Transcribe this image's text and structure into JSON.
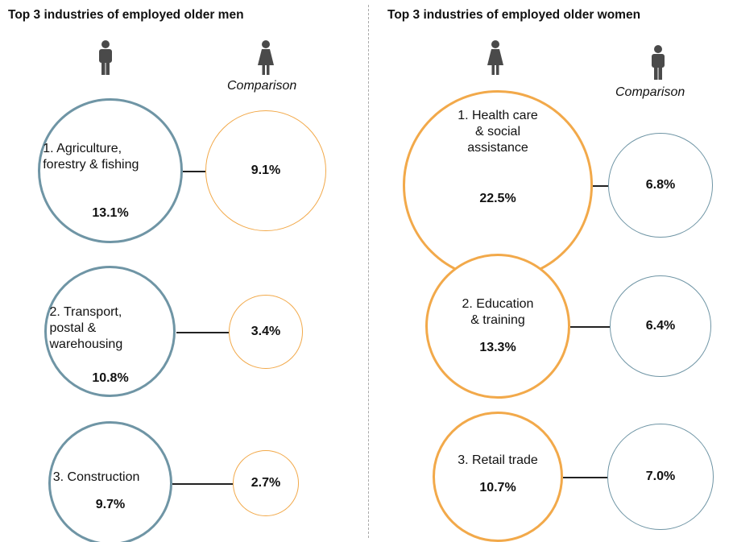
{
  "chart_data": [
    {
      "type": "bubble",
      "title": "Top 3 industries of employed older men",
      "comparison_label": "Comparison",
      "categories": [
        "1. Agriculture,\nforestry & fishing",
        "2. Transport,\npostal &\nwarehousing",
        "3. Construction"
      ],
      "values": [
        13.1,
        10.8,
        9.7
      ],
      "value_labels": [
        "13.1%",
        "10.8%",
        "9.7%"
      ],
      "comparison_values": [
        9.1,
        3.4,
        2.7
      ],
      "comparison_value_labels": [
        "9.1%",
        "3.4%",
        "2.7%"
      ],
      "color": "#6f95a5",
      "comparison_color": "#f2a94a"
    },
    {
      "type": "bubble",
      "title": "Top 3 industries of employed older women",
      "comparison_label": "Comparison",
      "categories": [
        "1. Health care\n& social\nassistance",
        "2. Education\n& training",
        "3. Retail trade"
      ],
      "values": [
        22.5,
        13.3,
        10.7
      ],
      "value_labels": [
        "22.5%",
        "13.3%",
        "10.7%"
      ],
      "comparison_values": [
        6.8,
        6.4,
        7.0
      ],
      "comparison_value_labels": [
        "6.8%",
        "6.4%",
        "7.0%"
      ],
      "color": "#f2a94a",
      "comparison_color": "#6f95a5"
    }
  ]
}
